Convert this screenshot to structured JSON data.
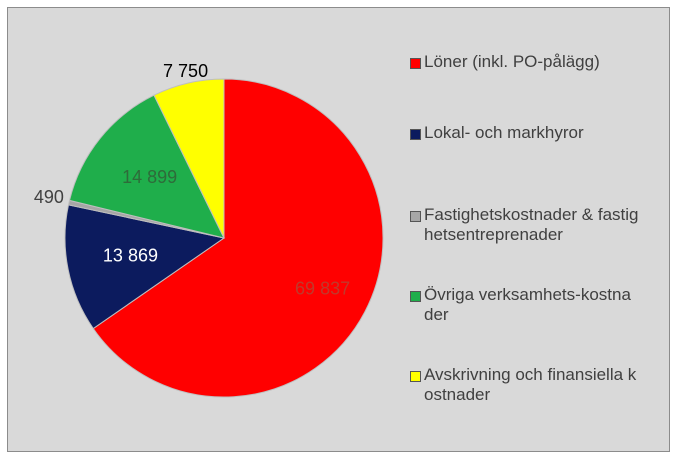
{
  "chart_data": {
    "type": "pie",
    "categories": [
      "Löner (inkl. PO-pålägg)",
      "Lokal- och markhyror",
      "Fastighetskostnader & fastighetsentreprenader",
      "Övriga verksamhets-kostnader",
      "Avskrivning och finansiella kostnader"
    ],
    "values": [
      69837,
      13869,
      490,
      14899,
      7750
    ],
    "value_labels": [
      "69 837",
      "13 869",
      "490",
      "14 899",
      "7 750"
    ],
    "colors": [
      "#ff0000",
      "#0c1b5e",
      "#a6a6a6",
      "#1fae4b",
      "#ffff00"
    ],
    "legend": "right"
  }
}
